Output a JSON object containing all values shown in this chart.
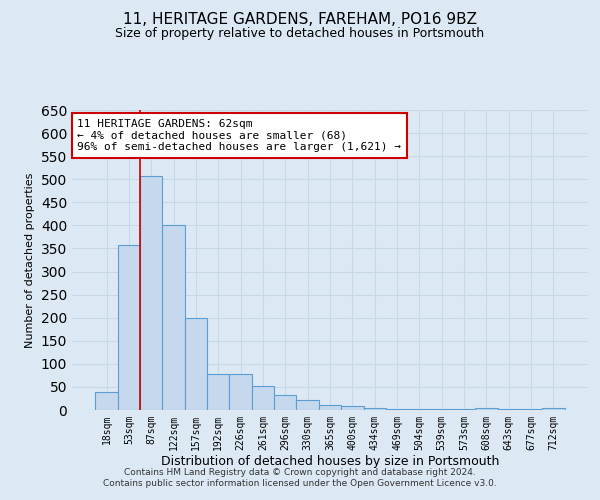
{
  "title": "11, HERITAGE GARDENS, FAREHAM, PO16 9BZ",
  "subtitle": "Size of property relative to detached houses in Portsmouth",
  "xlabel": "Distribution of detached houses by size in Portsmouth",
  "ylabel": "Number of detached properties",
  "categories": [
    "18sqm",
    "53sqm",
    "87sqm",
    "122sqm",
    "157sqm",
    "192sqm",
    "226sqm",
    "261sqm",
    "296sqm",
    "330sqm",
    "365sqm",
    "400sqm",
    "434sqm",
    "469sqm",
    "504sqm",
    "539sqm",
    "573sqm",
    "608sqm",
    "643sqm",
    "677sqm",
    "712sqm"
  ],
  "values": [
    38,
    357,
    507,
    400,
    200,
    78,
    78,
    52,
    33,
    22,
    11,
    9,
    5,
    3,
    2,
    2,
    2,
    4,
    2,
    2,
    4
  ],
  "bar_color": "#c5d8ed",
  "bar_edge_color": "#5a9fd4",
  "red_line_x": 1.0,
  "annotation_text": "11 HERITAGE GARDENS: 62sqm\n← 4% of detached houses are smaller (68)\n96% of semi-detached houses are larger (1,621) →",
  "annotation_box_color": "#ffffff",
  "annotation_box_edge": "#cc0000",
  "footer_line1": "Contains HM Land Registry data © Crown copyright and database right 2024.",
  "footer_line2": "Contains public sector information licensed under the Open Government Licence v3.0.",
  "grid_color": "#c8d8e8",
  "background_color": "#dce9f5",
  "plot_bg_color": "#dce9f5",
  "ylim": [
    0,
    650
  ],
  "yticks": [
    0,
    50,
    100,
    150,
    200,
    250,
    300,
    350,
    400,
    450,
    500,
    550,
    600,
    650
  ]
}
